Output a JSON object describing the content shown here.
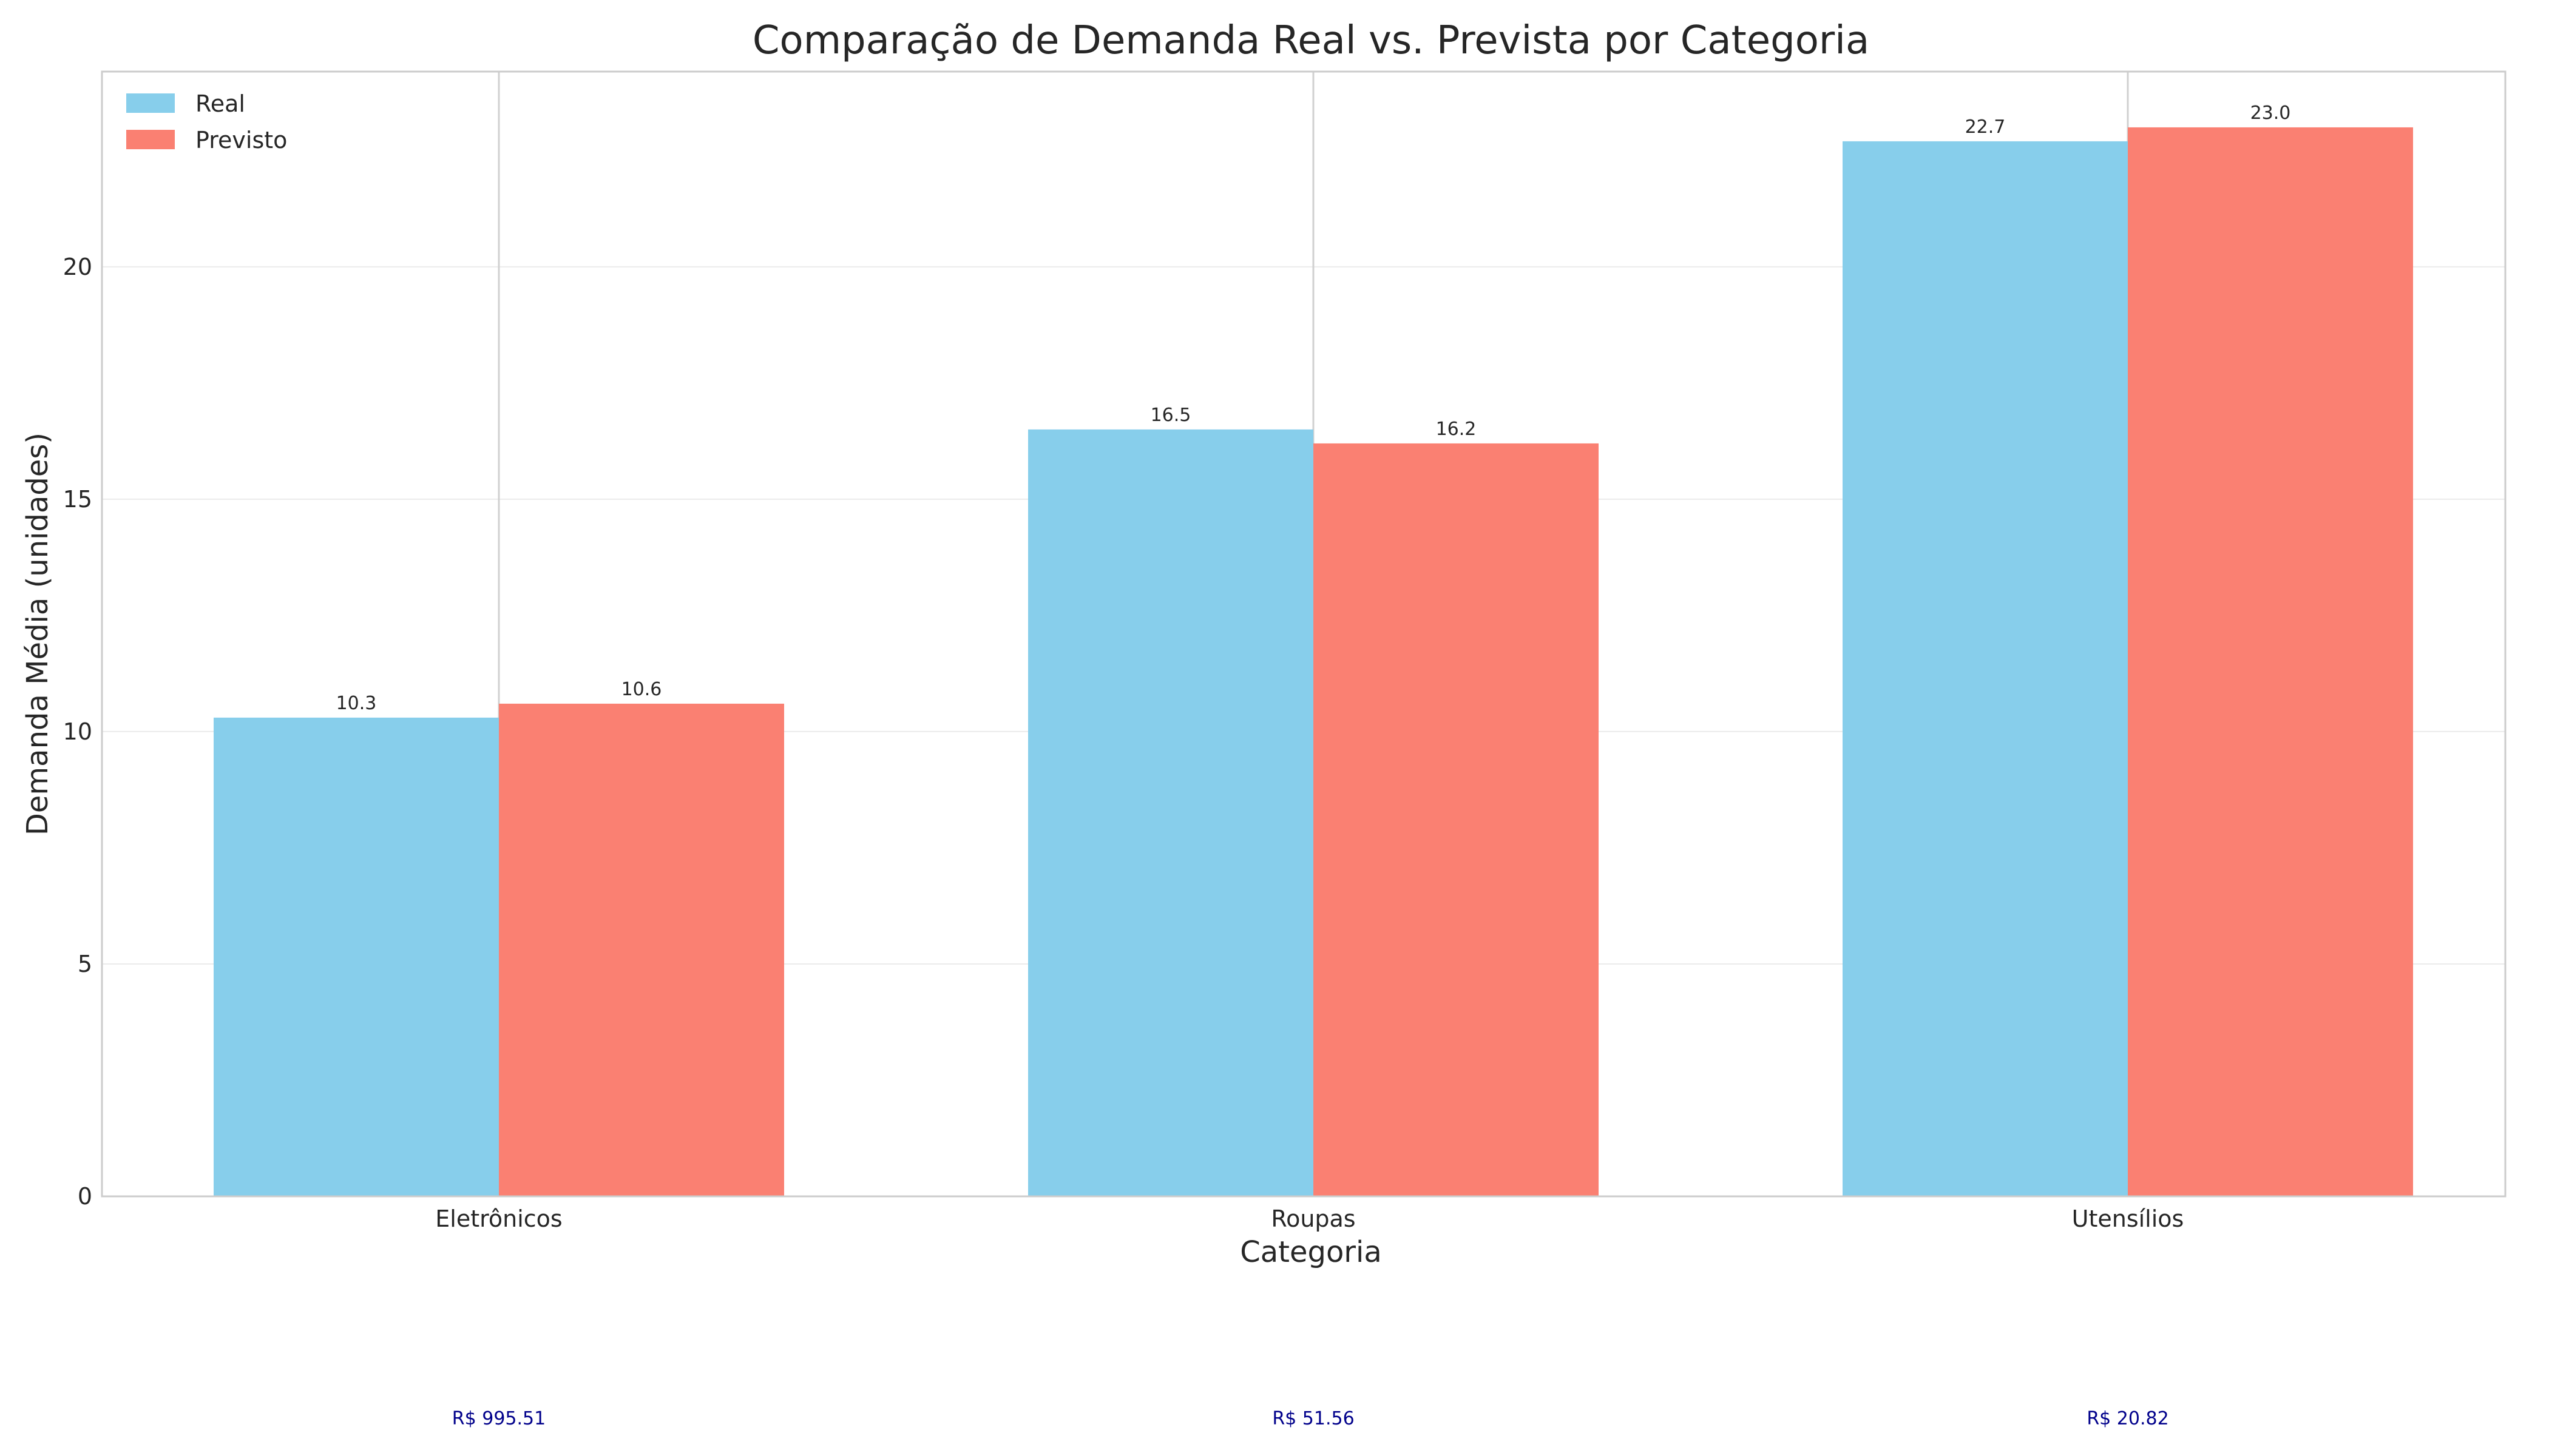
{
  "chart_data": {
    "type": "bar",
    "title": "Comparação de Demanda Real vs. Prevista por Categoria",
    "xlabel": "Categoria",
    "ylabel": "Demanda Média (unidades)",
    "categories": [
      "Eletrônicos",
      "Roupas",
      "Utensílios"
    ],
    "series": [
      {
        "name": "Real",
        "values": [
          10.3,
          16.5,
          22.7
        ],
        "color": "#87CEEB"
      },
      {
        "name": "Previsto",
        "values": [
          10.6,
          16.2,
          23.0
        ],
        "color": "#FA8072"
      }
    ],
    "data_labels": {
      "Real": [
        "10.3",
        "16.5",
        "22.7"
      ],
      "Previsto": [
        "10.6",
        "16.2",
        "23.0"
      ]
    },
    "annotations": [
      "R$ 995.51",
      "R$ 51.56",
      "R$ 20.82"
    ],
    "annotation_color": "#00008B",
    "ylim": [
      0,
      24.2
    ],
    "yticks": [
      0,
      5,
      10,
      15,
      20
    ],
    "grid": true,
    "legend_position": "top-left"
  }
}
